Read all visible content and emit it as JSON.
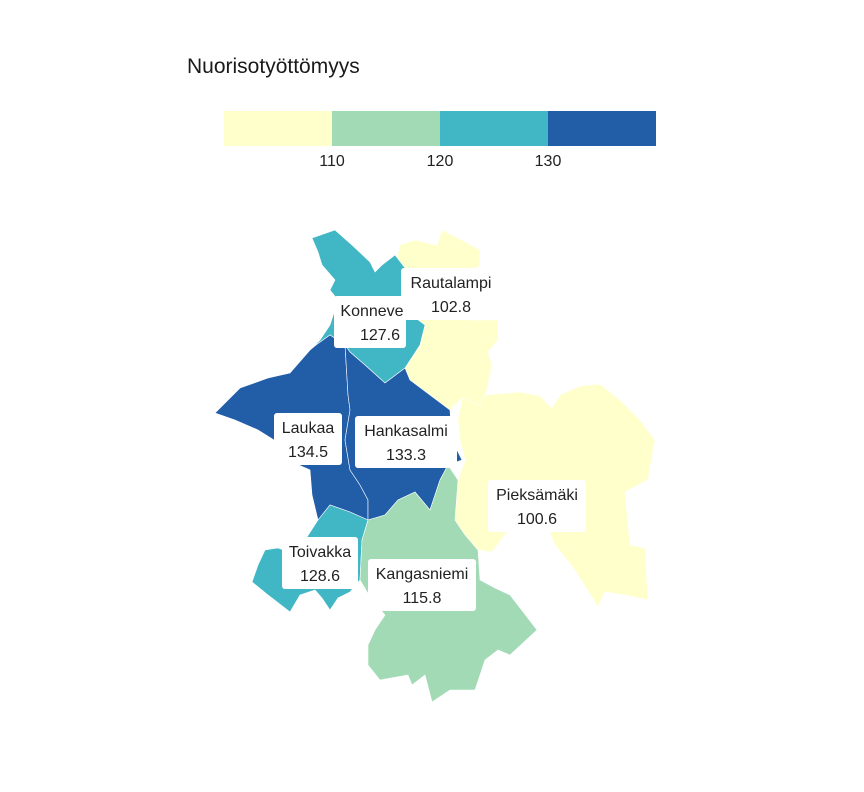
{
  "title": "Nuorisotyöttömyys",
  "legend": {
    "bins": [
      {
        "color": "#ffffcc"
      },
      {
        "color": "#a1dab4"
      },
      {
        "color": "#41b6c4"
      },
      {
        "color": "#225ea8"
      }
    ],
    "ticks": [
      "110",
      "120",
      "130"
    ]
  },
  "regions": [
    {
      "name": "Rautalampi",
      "value": "102.8",
      "color": "#ffffcc"
    },
    {
      "name": "Konnevesi",
      "display_name": "Konneve",
      "value": "127.6",
      "color": "#41b6c4"
    },
    {
      "name": "Laukaa",
      "value": "134.5",
      "color": "#225ea8"
    },
    {
      "name": "Hankasalmi",
      "value": "133.3",
      "color": "#225ea8"
    },
    {
      "name": "Pieksämäki",
      "value": "100.6",
      "color": "#ffffcc"
    },
    {
      "name": "Toivakka",
      "value": "128.6",
      "color": "#41b6c4"
    },
    {
      "name": "Kangasniemi",
      "value": "115.8",
      "color": "#a1dab4"
    }
  ]
}
